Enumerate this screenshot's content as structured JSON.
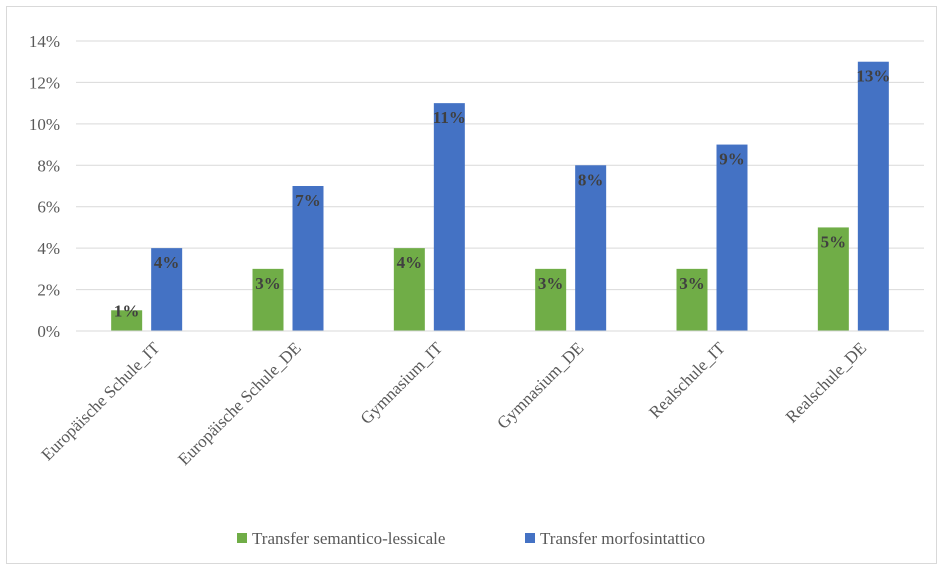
{
  "chart_data": {
    "type": "bar",
    "title": "",
    "xlabel": "",
    "ylabel": "",
    "categories": [
      "Europäische Schule_IT",
      "Europäische Schule_DE",
      "Gymnasium_IT",
      "Gymnasium_DE",
      "Realschule_IT",
      "Realschule_DE"
    ],
    "series": [
      {
        "name": "Transfer semantico-lessicale",
        "color": "#70ad47",
        "values": [
          1,
          3,
          4,
          3,
          3,
          5
        ],
        "labels": [
          "1%",
          "3%",
          "4%",
          "3%",
          "3%",
          "5%"
        ]
      },
      {
        "name": "Transfer morfosintattico",
        "color": "#4472c4",
        "values": [
          4,
          7,
          11,
          8,
          9,
          13
        ],
        "labels": [
          "4%",
          "7%",
          "11%",
          "8%",
          "9%",
          "13%"
        ]
      }
    ],
    "ylim": [
      0,
      14
    ],
    "yticks": [
      0,
      2,
      4,
      6,
      8,
      10,
      12,
      14
    ],
    "ytick_labels": [
      "0%",
      "2%",
      "4%",
      "6%",
      "8%",
      "10%",
      "12%",
      "14%"
    ],
    "grid": true,
    "legend_position": "bottom"
  }
}
